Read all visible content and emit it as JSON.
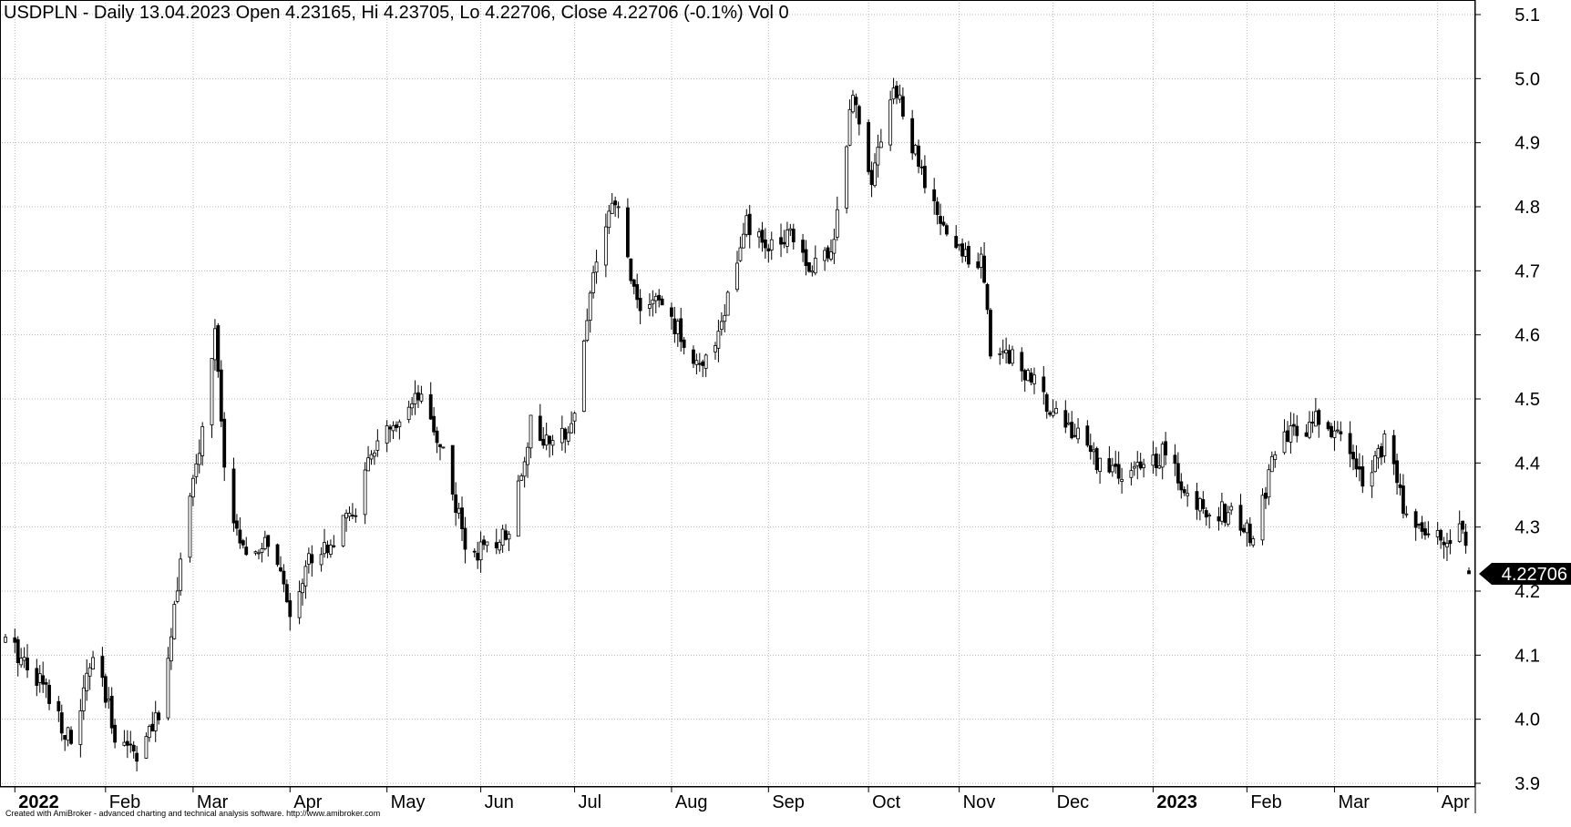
{
  "header": {
    "title": "USDPLN - Daily 13.04.2023 Open 4.23165, Hi 4.23705, Lo 4.22706, Close 4.22706 (-0.1%) Vol 0"
  },
  "footer": {
    "credit": "Created with AmiBroker - advanced charting and technical analysis software. http://www.amibroker.com"
  },
  "colors": {
    "background": "#ffffff",
    "grid": "#b8b8b8",
    "bar": "#000000",
    "price_label_bg": "#000000",
    "price_label_text": "#ffffff"
  },
  "chart_data": {
    "type": "ohlc",
    "symbol": "USDPLN",
    "interval": "Daily",
    "grid": true,
    "y_axis": {
      "position": "right",
      "ylim": [
        3.9,
        5.1
      ],
      "ticks": [
        3.9,
        4.0,
        4.1,
        4.2,
        4.3,
        4.4,
        4.5,
        4.6,
        4.7,
        4.8,
        4.9,
        5.0,
        5.1
      ],
      "tick_labels": [
        "3.9",
        "4.0",
        "4.1",
        "4.2",
        "4.3",
        "4.4",
        "4.5",
        "4.6",
        "4.7",
        "4.8",
        "4.9",
        "5.0",
        "5.1"
      ]
    },
    "x_axis": {
      "range": [
        "2021-12-31",
        "2023-04-13"
      ],
      "labels": [
        {
          "date": "2022-01-03",
          "text": "2022",
          "bold": true
        },
        {
          "date": "2022-02-01",
          "text": "Feb",
          "bold": false
        },
        {
          "date": "2022-03-01",
          "text": "Mar",
          "bold": false
        },
        {
          "date": "2022-04-01",
          "text": "Apr",
          "bold": false
        },
        {
          "date": "2022-05-02",
          "text": "May",
          "bold": false
        },
        {
          "date": "2022-06-01",
          "text": "Jun",
          "bold": false
        },
        {
          "date": "2022-07-01",
          "text": "Jul",
          "bold": false
        },
        {
          "date": "2022-08-01",
          "text": "Aug",
          "bold": false
        },
        {
          "date": "2022-09-01",
          "text": "Sep",
          "bold": false
        },
        {
          "date": "2022-10-03",
          "text": "Oct",
          "bold": false
        },
        {
          "date": "2022-11-01",
          "text": "Nov",
          "bold": false
        },
        {
          "date": "2022-12-01",
          "text": "Dec",
          "bold": false
        },
        {
          "date": "2023-01-02",
          "text": "2023",
          "bold": true
        },
        {
          "date": "2023-02-01",
          "text": "Feb",
          "bold": false
        },
        {
          "date": "2023-03-01",
          "text": "Mar",
          "bold": false
        },
        {
          "date": "2023-04-03",
          "text": "Apr",
          "bold": false
        }
      ]
    },
    "last_price": {
      "value": 4.22706,
      "label": "4.22706"
    },
    "last_bar": {
      "date": "2023-04-13",
      "open": 4.23165,
      "high": 4.23705,
      "low": 4.22706,
      "close": 4.22706,
      "change_pct": -0.1,
      "volume": 0
    },
    "close_path": [
      [
        "2021-12-31",
        4.12
      ],
      [
        "2022-01-07",
        4.09
      ],
      [
        "2022-01-14",
        4.04
      ],
      [
        "2022-01-21",
        3.96
      ],
      [
        "2022-01-28",
        4.1
      ],
      [
        "2022-02-04",
        3.98
      ],
      [
        "2022-02-11",
        3.95
      ],
      [
        "2022-02-18",
        4.0
      ],
      [
        "2022-02-25",
        4.25
      ],
      [
        "2022-03-04",
        4.45
      ],
      [
        "2022-03-08",
        4.61
      ],
      [
        "2022-03-11",
        4.38
      ],
      [
        "2022-03-18",
        4.24
      ],
      [
        "2022-03-25",
        4.28
      ],
      [
        "2022-04-01",
        4.17
      ],
      [
        "2022-04-08",
        4.26
      ],
      [
        "2022-04-15",
        4.28
      ],
      [
        "2022-04-22",
        4.33
      ],
      [
        "2022-04-29",
        4.44
      ],
      [
        "2022-05-06",
        4.45
      ],
      [
        "2022-05-12",
        4.5
      ],
      [
        "2022-05-20",
        4.42
      ],
      [
        "2022-05-27",
        4.27
      ],
      [
        "2022-06-03",
        4.26
      ],
      [
        "2022-06-10",
        4.3
      ],
      [
        "2022-06-17",
        4.46
      ],
      [
        "2022-06-24",
        4.42
      ],
      [
        "2022-07-01",
        4.48
      ],
      [
        "2022-07-07",
        4.7
      ],
      [
        "2022-07-14",
        4.81
      ],
      [
        "2022-07-21",
        4.65
      ],
      [
        "2022-07-28",
        4.65
      ],
      [
        "2022-08-04",
        4.6
      ],
      [
        "2022-08-11",
        4.54
      ],
      [
        "2022-08-18",
        4.64
      ],
      [
        "2022-08-25",
        4.77
      ],
      [
        "2022-09-01",
        4.73
      ],
      [
        "2022-09-08",
        4.77
      ],
      [
        "2022-09-15",
        4.7
      ],
      [
        "2022-09-22",
        4.75
      ],
      [
        "2022-09-28",
        4.98
      ],
      [
        "2022-10-04",
        4.85
      ],
      [
        "2022-10-11",
        4.99
      ],
      [
        "2022-10-18",
        4.88
      ],
      [
        "2022-10-25",
        4.78
      ],
      [
        "2022-11-01",
        4.73
      ],
      [
        "2022-11-08",
        4.72
      ],
      [
        "2022-11-11",
        4.58
      ],
      [
        "2022-11-18",
        4.57
      ],
      [
        "2022-11-25",
        4.52
      ],
      [
        "2022-12-02",
        4.48
      ],
      [
        "2022-12-09",
        4.44
      ],
      [
        "2022-12-16",
        4.4
      ],
      [
        "2022-12-23",
        4.38
      ],
      [
        "2022-12-30",
        4.39
      ],
      [
        "2023-01-06",
        4.42
      ],
      [
        "2023-01-13",
        4.34
      ],
      [
        "2023-01-20",
        4.33
      ],
      [
        "2023-01-27",
        4.32
      ],
      [
        "2023-02-03",
        4.28
      ],
      [
        "2023-02-10",
        4.42
      ],
      [
        "2023-02-17",
        4.45
      ],
      [
        "2023-02-24",
        4.47
      ],
      [
        "2023-03-03",
        4.44
      ],
      [
        "2023-03-10",
        4.38
      ],
      [
        "2023-03-17",
        4.43
      ],
      [
        "2023-03-24",
        4.32
      ],
      [
        "2023-03-31",
        4.29
      ],
      [
        "2023-04-07",
        4.28
      ],
      [
        "2023-04-11",
        4.31
      ],
      [
        "2023-04-13",
        4.22706
      ]
    ]
  }
}
